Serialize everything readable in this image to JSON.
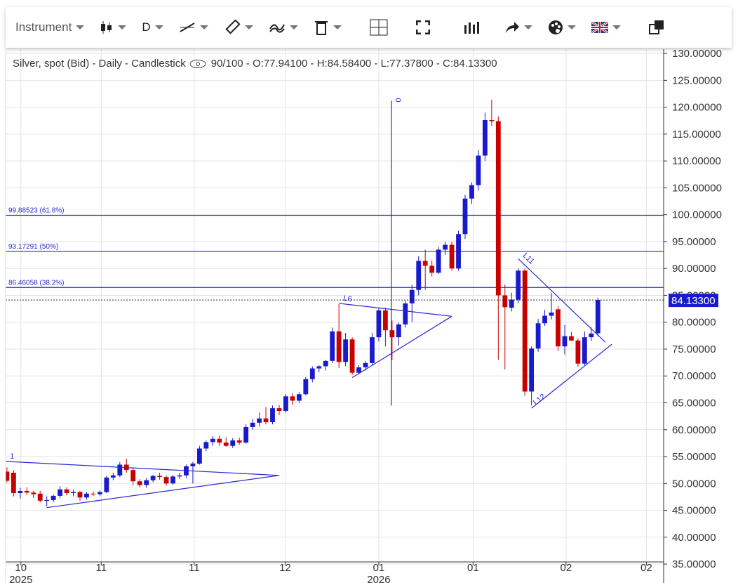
{
  "toolbar": {
    "instrument": "Instrument",
    "interval": "D"
  },
  "chart_data": {
    "type": "candlestick",
    "title": "Silver, spot (Bid) - Daily - Candlestick",
    "subtitle": "90/100 - O:77.94100 - H:84.58400 - L:77.37800 - C:84.13300",
    "categories": [
      null,
      null,
      null,
      null,
      null,
      null,
      null,
      null,
      null,
      null,
      null,
      null,
      null,
      null,
      null,
      null,
      null,
      null,
      null,
      null,
      null,
      null,
      null,
      null,
      null,
      null,
      null,
      null,
      null,
      null,
      null,
      null,
      null,
      null,
      null,
      null,
      null,
      null,
      null,
      null,
      null,
      null,
      null,
      null,
      null,
      null,
      null,
      null,
      null,
      null,
      null,
      null,
      null,
      null,
      null,
      null,
      null,
      null,
      null,
      null,
      null,
      null,
      null,
      null,
      null,
      null,
      null,
      null,
      null,
      null,
      null,
      null,
      null,
      null,
      null,
      null,
      null,
      null,
      null,
      null,
      null,
      null,
      null,
      null,
      null,
      null,
      null,
      null,
      null,
      null
    ],
    "open": [
      52.2,
      52,
      48.2,
      48.6,
      48.3,
      48.1,
      46.8,
      46.9,
      47.7,
      48.9,
      48.2,
      48.4,
      47.4,
      48.1,
      48.0,
      48.4,
      51.1,
      51.5,
      53.5,
      52.5,
      50.4,
      49.7,
      50.6,
      51.4,
      51.2,
      50,
      51.3,
      51.5,
      53.2,
      53.7,
      56.5,
      57.7,
      58.3,
      57.6,
      57,
      58,
      57.6,
      60.5,
      61.3,
      62.1,
      61.4,
      64,
      63.5,
      66.2,
      65.4,
      66.6,
      69.4,
      71.4,
      71.8,
      72.8,
      78.3,
      72.6,
      76.8,
      70.6,
      71.6,
      72.4,
      77.2,
      82.2,
      78.5,
      77.2,
      79.6,
      83.5,
      86,
      91.4,
      90.5,
      89.2,
      93.5,
      94.4,
      90,
      96.4,
      103,
      105.5,
      111,
      117.6,
      117.4,
      85,
      82.7,
      84.2,
      89.6,
      67.1,
      75.1,
      79.8,
      81.2,
      82.4,
      75.5,
      77.4,
      76.6,
      72.3,
      77.2,
      77.941
    ],
    "high": [
      53,
      52.5,
      49.2,
      49.3,
      48.6,
      48.6,
      47.6,
      47.9,
      49.5,
      49.3,
      48.8,
      48.6,
      48.4,
      48.5,
      48.7,
      51.4,
      52,
      54,
      54.6,
      53,
      50.8,
      51,
      51.6,
      52,
      51.5,
      51.6,
      52,
      53.5,
      54,
      57,
      58,
      58.8,
      58.9,
      58.6,
      58.4,
      58.5,
      61,
      62,
      63.2,
      64.2,
      64.5,
      64.6,
      66.6,
      66.8,
      67,
      69.8,
      71.8,
      72,
      73,
      79,
      83.4,
      78,
      77.2,
      72,
      72.8,
      78,
      82.6,
      82.7,
      80.3,
      80,
      84,
      87,
      92.3,
      93.5,
      91.5,
      94,
      95,
      95,
      97,
      103.7,
      106,
      112,
      119,
      121.4,
      118.3,
      87,
      85.5,
      90,
      90,
      75.5,
      80.6,
      82.3,
      85.5,
      83,
      79.5,
      78.2,
      77,
      78.3,
      79,
      84.584
    ],
    "low": [
      50.2,
      47.6,
      47.2,
      47.9,
      47.3,
      46.5,
      45.7,
      46.5,
      47.3,
      47.8,
      47.6,
      46.8,
      47,
      47.7,
      47.6,
      48.2,
      50.6,
      51.2,
      52,
      49.6,
      49.3,
      49.2,
      50.2,
      50.7,
      49.6,
      49.7,
      50.8,
      51,
      50,
      53.5,
      56,
      57,
      57,
      56.8,
      56.6,
      57.2,
      57.4,
      60,
      60.6,
      61,
      61,
      62.7,
      63.2,
      64.6,
      65,
      66.4,
      68.8,
      70.7,
      71,
      72.4,
      71.5,
      71.8,
      70.2,
      70.3,
      71,
      72,
      76.4,
      75.5,
      73,
      75.7,
      79,
      80,
      85,
      86,
      88.5,
      89,
      92.5,
      89.6,
      89.6,
      95.5,
      102,
      104.5,
      110,
      116.5,
      73,
      71.2,
      82,
      83.5,
      66.3,
      64.5,
      74.5,
      79.3,
      80.5,
      74.6,
      74,
      76.5,
      71.7,
      72,
      76.5,
      77.378
    ],
    "close": [
      50.5,
      48.2,
      48.6,
      48.3,
      48.0,
      46.8,
      46.9,
      47.7,
      48.9,
      48.2,
      48.4,
      47.4,
      48.1,
      48.0,
      48.4,
      51.1,
      51.5,
      53.5,
      52.5,
      50.4,
      49.7,
      50.6,
      51.4,
      51.2,
      50,
      51.3,
      51.5,
      53.2,
      53.7,
      56.5,
      57.7,
      58.3,
      57.6,
      57,
      58,
      57.6,
      60.5,
      61.3,
      62.1,
      61.4,
      64,
      63.5,
      66.2,
      65.4,
      66.6,
      69.4,
      71.4,
      71.8,
      72.8,
      78.3,
      72.6,
      76.8,
      70.6,
      71.6,
      72.4,
      77.2,
      82.2,
      78.5,
      77.2,
      79.6,
      83.5,
      86,
      91.4,
      90.5,
      89.2,
      93.5,
      94.4,
      90,
      96.4,
      103,
      105.5,
      111,
      117.6,
      117.4,
      85,
      82.8,
      84.2,
      89.6,
      67.1,
      75.1,
      79.8,
      81.2,
      81.8,
      75.5,
      77.4,
      76.6,
      72.3,
      77.2,
      77.9,
      84.133
    ],
    "up_color": "#1a1acd",
    "down_color": "#c80000",
    "xlim": [
      -0.2,
      98.9
    ],
    "ylim": [
      35.4,
      130.8
    ],
    "xticks": [
      {
        "value": 2.1,
        "label": "10"
      },
      {
        "value": 14.2,
        "label": "11"
      },
      {
        "value": 28.2,
        "label": "11"
      },
      {
        "value": 41.9,
        "label": "12"
      },
      {
        "value": 56,
        "label": "01"
      },
      {
        "value": 70.2,
        "label": "01"
      },
      {
        "value": 84.2,
        "label": "02"
      },
      {
        "value": 96.3,
        "label": "02"
      }
    ],
    "xtick_years": [
      {
        "value": 2.1,
        "label": "2025"
      },
      {
        "value": 56,
        "label": "2026"
      }
    ],
    "yticks": [
      {
        "value": 35,
        "label": "35.00000"
      },
      {
        "value": 40,
        "label": "40.00000"
      },
      {
        "value": 45,
        "label": "45.00000"
      },
      {
        "value": 50,
        "label": "50.00000"
      },
      {
        "value": 55,
        "label": "55.00000"
      },
      {
        "value": 60,
        "label": "60.00000"
      },
      {
        "value": 65,
        "label": "65.00000"
      },
      {
        "value": 70,
        "label": "70.00000"
      },
      {
        "value": 75,
        "label": "75.00000"
      },
      {
        "value": 80,
        "label": "80.00000"
      },
      {
        "value": 85,
        "label": "85.00000"
      },
      {
        "value": 90,
        "label": "90.00000"
      },
      {
        "value": 95,
        "label": "95.00000"
      },
      {
        "value": 100,
        "label": "100.00000"
      },
      {
        "value": 105,
        "label": "105.00000"
      },
      {
        "value": 110,
        "label": "110.00000"
      },
      {
        "value": 115,
        "label": "115.00000"
      },
      {
        "value": 120,
        "label": "120.00000"
      },
      {
        "value": 125,
        "label": "125.00000"
      },
      {
        "value": 130,
        "label": "130.00000"
      }
    ],
    "grid": true,
    "fib_levels": [
      {
        "value": 99.88523,
        "label": "99.88523 (61.8%)"
      },
      {
        "value": 93.17291,
        "label": "93.17291 (50%)"
      },
      {
        "value": 86.46058,
        "label": "86.46058 (38.2%)"
      }
    ],
    "fib_color": "#2a2ad0",
    "last_price": {
      "value": 84.133,
      "label": "84.13300"
    },
    "drawing_color": "#2a2ad0",
    "drawings": [
      {
        "label": "1",
        "lines": [
          [
            [
              -0.2,
              54.1
            ],
            [
              41,
              51.5
            ]
          ],
          [
            [
              6,
              45.5
            ],
            [
              41,
              51.5
            ]
          ]
        ]
      },
      {
        "label": "L6",
        "lines": [
          [
            [
              50,
              83.5
            ],
            [
              67,
              81.1
            ]
          ],
          [
            [
              52,
              69.7
            ],
            [
              67,
              81.1
            ]
          ]
        ]
      },
      {
        "label": "0",
        "lines": [
          [
            [
              57.9,
              121.2
            ],
            [
              57.9,
              64.5
            ]
          ]
        ]
      },
      {
        "label": "L11",
        "lines": [
          [
            [
              77,
              91.8
            ],
            [
              90.1,
              76.3
            ]
          ]
        ]
      },
      {
        "label": "L12",
        "lines": [
          [
            [
              79,
              64
            ],
            [
              91.1,
              75.9
            ]
          ]
        ]
      }
    ]
  }
}
